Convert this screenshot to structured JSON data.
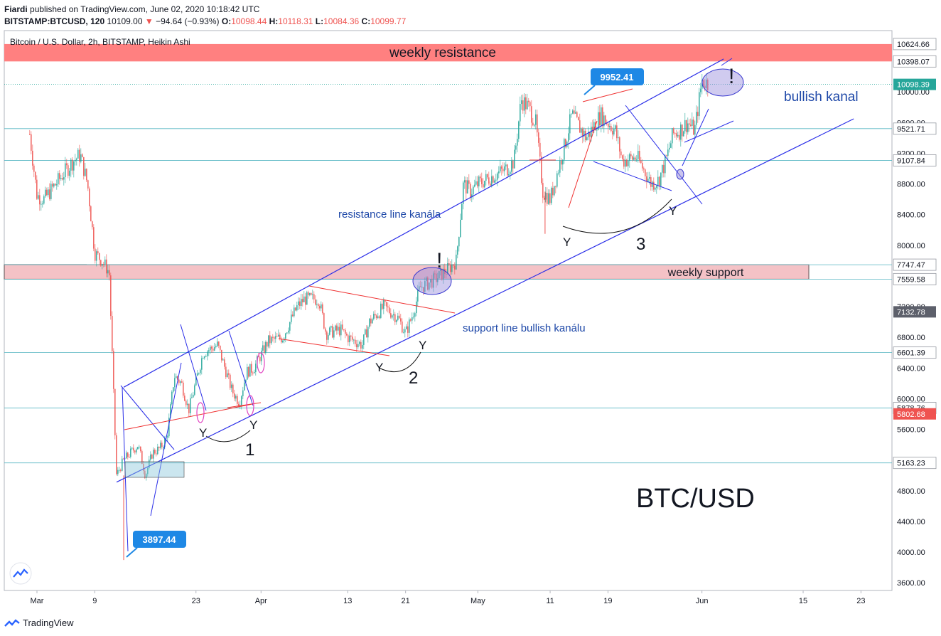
{
  "header": {
    "author": "Fiardi",
    "published_text": "published on TradingView.com, June 02, 2020 10:18:42 UTC",
    "symbol": "BITSTAMP:BTCUSD, 120",
    "last": "10109.00",
    "change": "−94.64 (−0.93%)",
    "o_label": "O:",
    "o": "10098.44",
    "h_label": "H:",
    "h": "10118.31",
    "l_label": "L:",
    "l": "10084.36",
    "c_label": "C:",
    "c": "10099.77"
  },
  "chart_data": {
    "type": "candlestick",
    "title": "Bitcoin / U.S. Dollar, 2h, BITSTAMP, Heikin Ashi",
    "ylim": [
      3500,
      10800
    ],
    "y_ticks": [
      3600,
      4000,
      4400,
      4800,
      5200,
      5600,
      6000,
      6400,
      6800,
      7200,
      7600,
      8000,
      8400,
      8800,
      9200,
      9600,
      10000
    ],
    "y_tick_labels": [
      "3600.00",
      "4000.00",
      "4400.00",
      "4800.00",
      "",
      "5600.00",
      "6000.00",
      "6400.00",
      "6800.00",
      "7200.00",
      "",
      "8000.00",
      "8400.00",
      "8800.00",
      "9200.00",
      "9600.00",
      "10000.00"
    ],
    "x_ticks": [
      {
        "label": "Mar",
        "date": "2020-03-01"
      },
      {
        "label": "9",
        "date": "2020-03-09"
      },
      {
        "label": "23",
        "date": "2020-03-23"
      },
      {
        "label": "Apr",
        "date": "2020-04-01"
      },
      {
        "label": "13",
        "date": "2020-04-13"
      },
      {
        "label": "21",
        "date": "2020-04-21"
      },
      {
        "label": "May",
        "date": "2020-05-01"
      },
      {
        "label": "11",
        "date": "2020-05-11"
      },
      {
        "label": "19",
        "date": "2020-05-19"
      },
      {
        "label": "Jun",
        "date": "2020-06-01"
      },
      {
        "label": "15",
        "date": "2020-06-15"
      },
      {
        "label": "23",
        "date": "2020-06-23"
      }
    ],
    "price_path": [
      [
        "2020-02-29",
        9450
      ],
      [
        "2020-03-01",
        8650
      ],
      [
        "2020-03-02",
        8600
      ],
      [
        "2020-03-04",
        8850
      ],
      [
        "2020-03-06",
        9100
      ],
      [
        "2020-03-07",
        9180
      ],
      [
        "2020-03-08",
        8800
      ],
      [
        "2020-03-09",
        7900
      ],
      [
        "2020-03-10",
        7800
      ],
      [
        "2020-03-11",
        7650
      ],
      [
        "2020-03-12",
        5000
      ],
      [
        "2020-03-13",
        5200
      ],
      [
        "2020-03-14",
        5300
      ],
      [
        "2020-03-15",
        5400
      ],
      [
        "2020-03-16",
        5000
      ],
      [
        "2020-03-17",
        5300
      ],
      [
        "2020-03-18",
        5350
      ],
      [
        "2020-03-19",
        5500
      ],
      [
        "2020-03-20",
        6300
      ],
      [
        "2020-03-21",
        6200
      ],
      [
        "2020-03-22",
        5850
      ],
      [
        "2020-03-24",
        6600
      ],
      [
        "2020-03-26",
        6700
      ],
      [
        "2020-03-28",
        6100
      ],
      [
        "2020-03-29",
        5950
      ],
      [
        "2020-03-30",
        6350
      ],
      [
        "2020-03-31",
        6400
      ],
      [
        "2020-04-02",
        6750
      ],
      [
        "2020-04-04",
        6800
      ],
      [
        "2020-04-06",
        7200
      ],
      [
        "2020-04-07",
        7300
      ],
      [
        "2020-04-09",
        7300
      ],
      [
        "2020-04-10",
        6850
      ],
      [
        "2020-04-12",
        6900
      ],
      [
        "2020-04-13",
        6800
      ],
      [
        "2020-04-15",
        6700
      ],
      [
        "2020-04-16",
        7000
      ],
      [
        "2020-04-18",
        7200
      ],
      [
        "2020-04-20",
        7050
      ],
      [
        "2020-04-21",
        6850
      ],
      [
        "2020-04-22",
        7100
      ],
      [
        "2020-04-23",
        7450
      ],
      [
        "2020-04-24",
        7500
      ],
      [
        "2020-04-25",
        7550
      ],
      [
        "2020-04-27",
        7700
      ],
      [
        "2020-04-28",
        7800
      ],
      [
        "2020-04-29",
        8800
      ],
      [
        "2020-04-30",
        8700
      ],
      [
        "2020-05-01",
        8800
      ],
      [
        "2020-05-03",
        8900
      ],
      [
        "2020-05-05",
        9000
      ],
      [
        "2020-05-06",
        9100
      ],
      [
        "2020-05-07",
        9900
      ],
      [
        "2020-05-08",
        9800
      ],
      [
        "2020-05-09",
        9600
      ],
      [
        "2020-05-10",
        8700
      ],
      [
        "2020-05-11",
        8600
      ],
      [
        "2020-05-13",
        9300
      ],
      [
        "2020-05-14",
        9700
      ],
      [
        "2020-05-16",
        9400
      ],
      [
        "2020-05-18",
        9700
      ],
      [
        "2020-05-20",
        9500
      ],
      [
        "2020-05-21",
        9100
      ],
      [
        "2020-05-23",
        9150
      ],
      [
        "2020-05-25",
        8800
      ],
      [
        "2020-05-26",
        8850
      ],
      [
        "2020-05-27",
        9100
      ],
      [
        "2020-05-28",
        9450
      ],
      [
        "2020-05-29",
        9500
      ],
      [
        "2020-05-30",
        9600
      ],
      [
        "2020-05-31",
        9500
      ],
      [
        "2020-06-01",
        10150
      ],
      [
        "2020-06-02",
        10099.77
      ]
    ],
    "price_labels": [
      {
        "value": "10624.66",
        "price": 10624.66,
        "style": "gray"
      },
      {
        "value": "10398.07",
        "price": 10398.07,
        "style": "gray"
      },
      {
        "value": "10098.39",
        "price": 10098.39,
        "style": "teal"
      },
      {
        "value": "9521.71",
        "price": 9521.71,
        "style": "gray"
      },
      {
        "value": "9107.84",
        "price": 9107.84,
        "style": "gray"
      },
      {
        "value": "7747.47",
        "price": 7747.47,
        "style": "gray"
      },
      {
        "value": "7559.58",
        "price": 7559.58,
        "style": "gray"
      },
      {
        "value": "7132.78",
        "price": 7132.78,
        "style": "dark"
      },
      {
        "value": "6601.39",
        "price": 6601.39,
        "style": "gray"
      },
      {
        "value": "5878.76",
        "price": 5878.76,
        "style": "gray"
      },
      {
        "value": "5802.68",
        "price": 5802.68,
        "style": "red"
      },
      {
        "value": "5163.23",
        "price": 5163.23,
        "style": "gray"
      }
    ],
    "callouts": [
      {
        "value": "9952.41",
        "date": "2020-05-13",
        "price": 9952.41
      },
      {
        "value": "3897.44",
        "date": "2020-03-13",
        "price": 3897.44
      }
    ],
    "zones": [
      {
        "label": "weekly resistance",
        "low": 10398.07,
        "high": 10624.66,
        "color": "#ff8080"
      },
      {
        "label": "weekly support",
        "low": 7559.58,
        "high": 7747.47,
        "color": "#f4c2c6"
      }
    ],
    "channel": {
      "resistance": [
        [
          "2020-03-13",
          6150
        ],
        [
          "2020-06-04",
          10430
        ]
      ],
      "support": [
        [
          "2020-03-13",
          4950
        ],
        [
          "2020-06-22",
          9650
        ]
      ]
    },
    "annotations": {
      "bullish_kanal": "bullish kanal",
      "resistance_line": "resistance line kanála",
      "support_line": "support line bullish kanálu",
      "instrument": "BTC/USD",
      "num1": "1",
      "num2": "2",
      "num3": "3",
      "y_mark": "Y",
      "excl": "!"
    },
    "colors": {
      "up": "#26a69a",
      "down": "#ef5350",
      "channel": "#2a2ee8",
      "red_line": "#ef3030",
      "hline": "#56b6c2"
    }
  },
  "footer": {
    "brand": "TradingView"
  }
}
